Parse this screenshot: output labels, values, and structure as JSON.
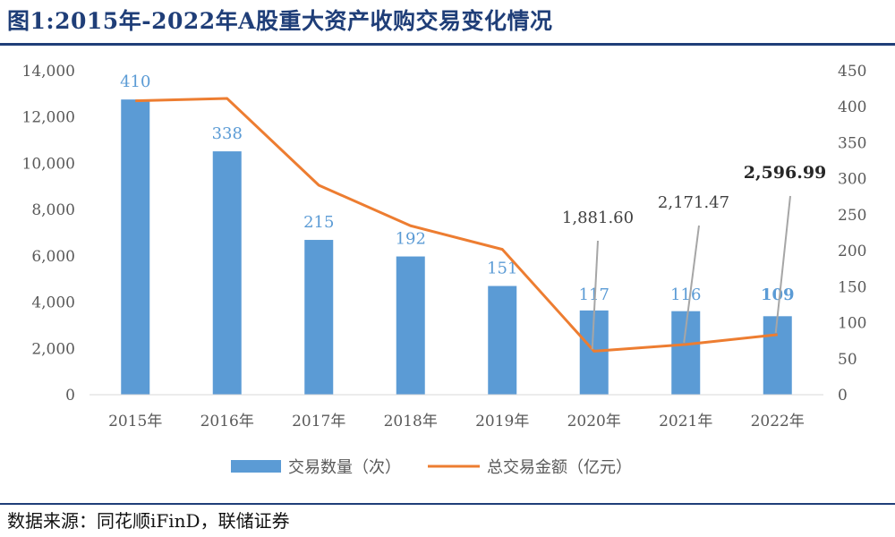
{
  "title": "图1:2015年-2022年A股重大资产收购交易变化情况",
  "source": "数据来源：同花顺iFinD，联储证券",
  "colors": {
    "bar": "#5b9bd5",
    "line": "#ed7d31",
    "axis_text": "#595959",
    "bar_label": "#5b9bd5",
    "header": "#1f3e78",
    "leader": "#a6a6a6"
  },
  "chart_data": {
    "type": "bar",
    "categories": [
      "2015年",
      "2016年",
      "2017年",
      "2018年",
      "2019年",
      "2020年",
      "2021年",
      "2022年"
    ],
    "series": [
      {
        "name": "交易数量（次）",
        "type": "bar",
        "axis": "right",
        "values": [
          410,
          338,
          215,
          192,
          151,
          117,
          116,
          109
        ],
        "labels": [
          "410",
          "338",
          "215",
          "192",
          "151",
          "117",
          "116",
          "109"
        ]
      },
      {
        "name": "总交易金额（亿元）",
        "type": "line",
        "axis": "left",
        "values": [
          12700,
          12800,
          9050,
          7300,
          6280,
          1881.6,
          2171.47,
          2596.99
        ],
        "labels": [
          "",
          "",
          "",
          "",
          "",
          "1,881.60",
          "2,171.47",
          "2,596.99"
        ]
      }
    ],
    "left_axis": {
      "ylim": [
        0,
        14000
      ],
      "ticks": [
        "0",
        "2,000",
        "4,000",
        "6,000",
        "8,000",
        "10,000",
        "12,000",
        "14,000"
      ]
    },
    "right_axis": {
      "ylim": [
        0,
        450
      ],
      "ticks": [
        "0",
        "50",
        "100",
        "150",
        "200",
        "250",
        "300",
        "350",
        "400",
        "450"
      ]
    },
    "legend": "bottom",
    "grid": false
  }
}
